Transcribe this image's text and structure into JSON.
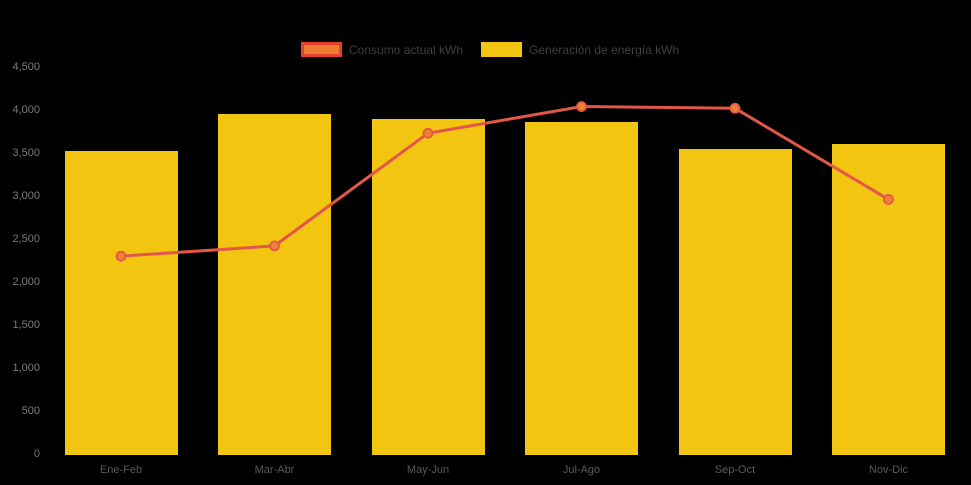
{
  "legend": {
    "items": [
      {
        "label": "Consumo actual kWh",
        "type": "line",
        "color": "#E8402C",
        "marker_color": "#ED7D31"
      },
      {
        "label": "Generación de energía kWh",
        "type": "bar",
        "color": "#F2C511"
      }
    ]
  },
  "chart_data": {
    "type": "bar",
    "title": "",
    "xlabel": "",
    "ylabel": "",
    "categories": [
      "Ene-Feb",
      "Mar-Abr",
      "May-Jun",
      "Jul-Ago",
      "Sep-Oct",
      "Nov-Dic"
    ],
    "series": [
      {
        "name": "Generación de energía kWh",
        "type": "bar",
        "color": "#F2C511",
        "values": [
          3520,
          3950,
          3900,
          3860,
          3550,
          3600
        ]
      },
      {
        "name": "Consumo actual kWh",
        "type": "line",
        "color": "#E2574A",
        "marker_color": "#F0812F",
        "values": [
          2300,
          2420,
          3730,
          4040,
          4020,
          2960
        ]
      }
    ],
    "ylim": [
      0,
      4500
    ],
    "ytick_step": 500,
    "ytick_labels": [
      "0",
      "500",
      "1,000",
      "1,500",
      "2,000",
      "2,500",
      "3,000",
      "3,500",
      "4,000",
      "4,500"
    ],
    "grid": false,
    "legend_position": "top",
    "background": "#000000"
  }
}
